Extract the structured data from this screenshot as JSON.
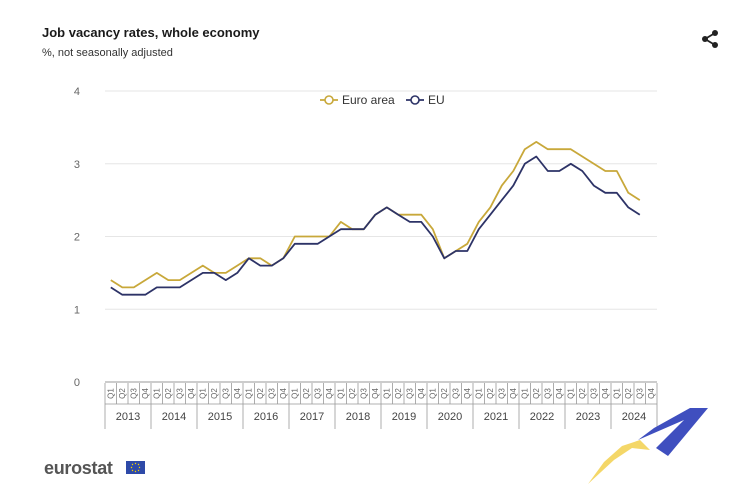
{
  "header": {
    "title": "Job vacancy rates, whole economy",
    "subtitle": "%, not  seasonally adjusted"
  },
  "icons": {
    "share": "share-icon",
    "flag": "eu-flag-icon"
  },
  "footer": {
    "logo": "eurostat"
  },
  "colors": {
    "euro_area": "#c8a83a",
    "eu": "#2d3367",
    "grid": "#e6e6e6",
    "axis_text": "#666666"
  },
  "chart_data": {
    "type": "line",
    "title": "Job vacancy rates, whole economy",
    "subtitle": "%, not  seasonally adjusted",
    "ylim": [
      0,
      4
    ],
    "yticks": [
      0,
      1,
      2,
      3,
      4
    ],
    "grid": true,
    "legend_position": "top-center",
    "quarter_labels": [
      "Q1",
      "Q2",
      "Q3",
      "Q4"
    ],
    "years": [
      "2013",
      "2014",
      "2015",
      "2016",
      "2017",
      "2018",
      "2019",
      "2020",
      "2021",
      "2022",
      "2023",
      "2024"
    ],
    "series": [
      {
        "name": "Euro area",
        "color": "#c8a83a",
        "values": [
          1.4,
          1.3,
          1.3,
          1.4,
          1.5,
          1.4,
          1.4,
          1.5,
          1.6,
          1.5,
          1.5,
          1.6,
          1.7,
          1.7,
          1.6,
          1.7,
          2.0,
          2.0,
          2.0,
          2.0,
          2.2,
          2.1,
          2.1,
          2.3,
          2.4,
          2.3,
          2.3,
          2.3,
          2.1,
          1.7,
          1.8,
          1.9,
          2.2,
          2.4,
          2.7,
          2.9,
          3.2,
          3.3,
          3.2,
          3.2,
          3.2,
          3.1,
          3.0,
          2.9,
          2.9,
          2.6,
          2.5
        ]
      },
      {
        "name": "EU",
        "color": "#2d3367",
        "values": [
          1.3,
          1.2,
          1.2,
          1.2,
          1.3,
          1.3,
          1.3,
          1.4,
          1.5,
          1.5,
          1.4,
          1.5,
          1.7,
          1.6,
          1.6,
          1.7,
          1.9,
          1.9,
          1.9,
          2.0,
          2.1,
          2.1,
          2.1,
          2.3,
          2.4,
          2.3,
          2.2,
          2.2,
          2.0,
          1.7,
          1.8,
          1.8,
          2.1,
          2.3,
          2.5,
          2.7,
          3.0,
          3.1,
          2.9,
          2.9,
          3.0,
          2.9,
          2.7,
          2.6,
          2.6,
          2.4,
          2.3
        ]
      }
    ]
  }
}
